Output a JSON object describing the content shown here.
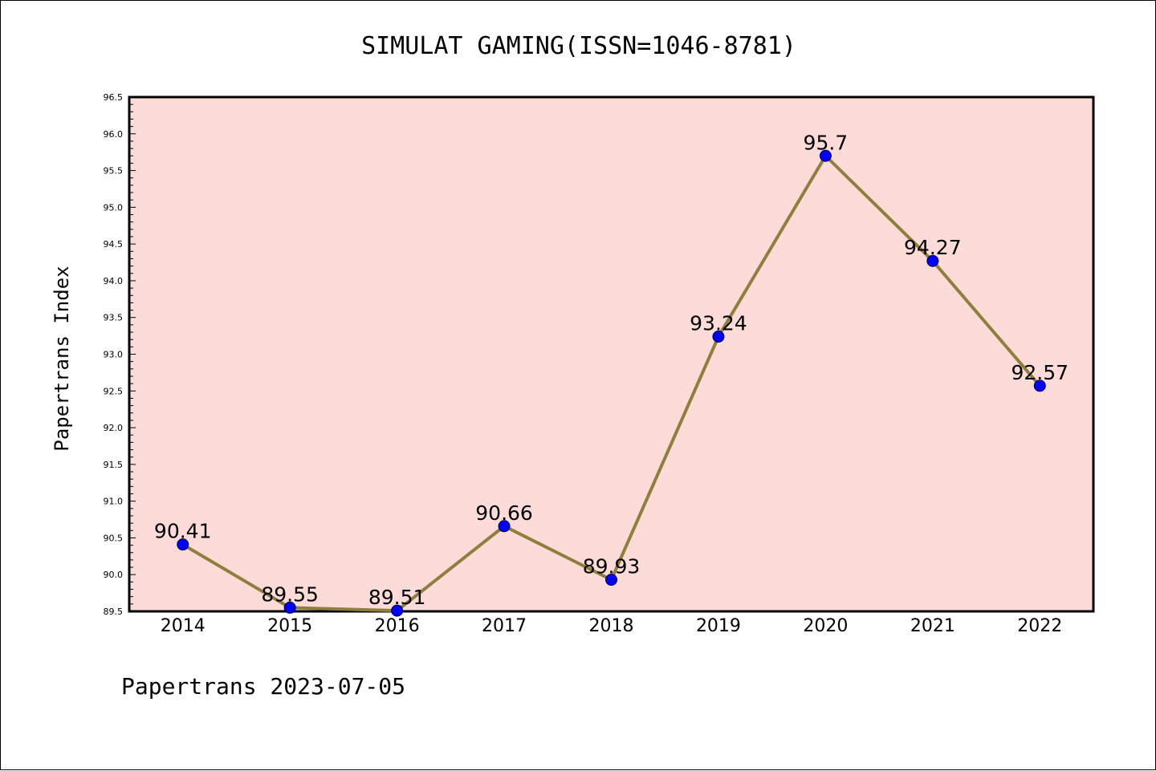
{
  "chart_data": {
    "type": "line",
    "title": "SIMULAT GAMING(ISSN=1046-8781)",
    "xlabel": "",
    "ylabel": "Papertrans Index",
    "footer": "Papertrans 2023-07-05",
    "categories": [
      "2014",
      "2015",
      "2016",
      "2017",
      "2018",
      "2019",
      "2020",
      "2021",
      "2022"
    ],
    "series": [
      {
        "values": [
          90.41,
          89.55,
          89.51,
          90.66,
          89.93,
          93.24,
          95.7,
          94.27,
          92.57
        ],
        "labels": [
          "90.41",
          "89.55",
          "89.51",
          "90.66",
          "89.93",
          "93.24",
          "95.7",
          "94.27",
          "92.57"
        ]
      }
    ],
    "ylim": [
      89.5,
      96.5
    ],
    "yticks": [
      "89.5",
      "90.0",
      "90.5",
      "91.0",
      "91.5",
      "92.0",
      "92.5",
      "93.0",
      "93.5",
      "94.0",
      "94.5",
      "95.0",
      "95.5",
      "96.0",
      "96.5"
    ],
    "grid": false,
    "legend": "none",
    "colors": {
      "plot_background": "#fddbd9",
      "line": "#8f7f3d",
      "marker": "#0000ff",
      "axes": "#000000"
    }
  }
}
